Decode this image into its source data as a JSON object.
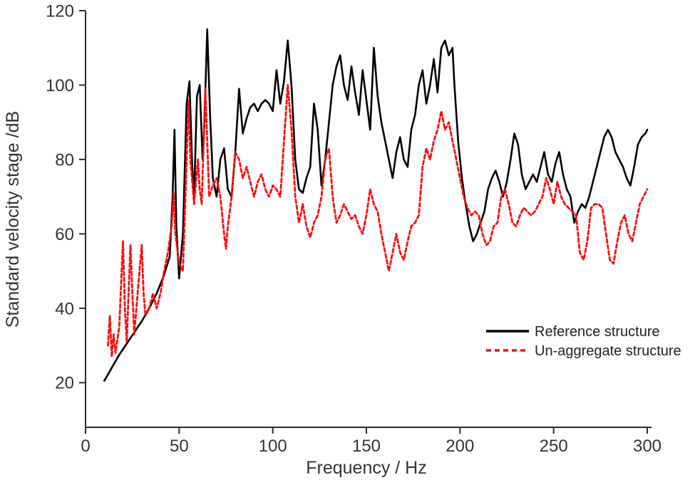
{
  "figure": {
    "background": "#ffffff",
    "text_color": "#333333",
    "axis_color": "#2b2b2b"
  },
  "chart_data": {
    "type": "line",
    "title": "",
    "xlabel": "Frequency / Hz",
    "ylabel": "Standard velocity stage /dB",
    "xlim": [
      0,
      300
    ],
    "ylim": [
      8,
      120
    ],
    "xticks": [
      0,
      50,
      100,
      150,
      200,
      250,
      300
    ],
    "yticks": [
      20,
      40,
      60,
      80,
      100,
      120
    ],
    "grid": false,
    "legend_position": "inside-lower-right",
    "series": [
      {
        "name": "Reference structure",
        "color": "#000000",
        "style": "solid",
        "width": 2.6,
        "x": [
          10,
          14,
          18,
          22,
          26,
          30,
          34,
          38,
          42,
          45,
          46.5,
          47.5,
          48.5,
          50,
          52,
          54,
          55.5,
          57,
          58,
          59.5,
          61,
          62.5,
          63.5,
          65,
          66.5,
          68,
          70,
          72,
          74,
          76,
          78,
          80,
          82,
          84,
          86,
          88,
          90,
          92,
          94,
          96,
          98,
          100,
          102,
          104,
          106,
          108,
          110,
          112,
          114,
          116,
          118,
          120,
          122,
          124,
          126,
          128,
          130,
          132,
          134,
          136,
          138,
          140,
          142,
          144,
          146,
          148,
          150,
          152,
          154,
          156,
          158,
          160,
          162,
          164,
          166,
          168,
          170,
          172,
          174,
          176,
          178,
          180,
          182,
          184,
          186,
          188,
          190,
          192,
          194,
          196,
          197,
          199,
          201,
          203,
          205,
          207,
          209,
          211,
          213,
          215,
          217,
          219,
          221,
          223,
          225,
          227,
          229,
          231,
          233,
          235,
          237,
          239,
          241,
          243,
          245,
          247,
          249,
          251,
          253,
          255,
          257,
          259,
          261,
          263,
          265,
          267,
          269,
          271,
          273,
          275,
          277,
          279,
          281,
          283,
          285,
          287,
          289,
          291,
          293,
          295,
          297,
          299,
          300
        ],
        "y": [
          20.5,
          24,
          27.5,
          30.5,
          33.5,
          36.5,
          40,
          44,
          49,
          54,
          70,
          88,
          62,
          48,
          60,
          95,
          101,
          78,
          70,
          97,
          100,
          80,
          90,
          115,
          92,
          75,
          70,
          80,
          83,
          72,
          70,
          82,
          99,
          87,
          91,
          94,
          95,
          93,
          95,
          96,
          95,
          93,
          104,
          95,
          101,
          112,
          100,
          80,
          72,
          71,
          75,
          78,
          95,
          88,
          73,
          80,
          90,
          100,
          105,
          108,
          100,
          96,
          105,
          98,
          92,
          104,
          96,
          88,
          110,
          97,
          90,
          85,
          80,
          75,
          82,
          86,
          80,
          78,
          88,
          92,
          100,
          104,
          95,
          100,
          107,
          98,
          110,
          112,
          108,
          110,
          100,
          85,
          75,
          68,
          62,
          58,
          60,
          63,
          66,
          72,
          75,
          77,
          74,
          70,
          74,
          80,
          87,
          84,
          76,
          72,
          74,
          76,
          74,
          78,
          82,
          76,
          74,
          79,
          82,
          76,
          72,
          70,
          63,
          66,
          68,
          67,
          70,
          74,
          78,
          82,
          86,
          88,
          86,
          82,
          80,
          78,
          75,
          73,
          78,
          84,
          86,
          87,
          88
        ]
      },
      {
        "name": "Un-aggregate structure",
        "color": "#fb0d0d",
        "style": "dashed",
        "width": 2.8,
        "x": [
          12,
          13,
          14,
          15,
          16,
          18,
          20,
          21,
          22,
          24,
          25,
          26,
          28,
          30,
          31,
          32,
          34,
          36,
          38,
          40,
          42,
          44,
          46,
          47,
          48,
          50,
          52,
          54,
          55,
          56,
          58,
          60,
          61,
          62,
          64,
          65,
          66,
          68,
          70,
          72,
          74,
          75,
          76,
          78,
          80,
          82,
          84,
          86,
          88,
          90,
          92,
          94,
          96,
          98,
          100,
          102,
          104,
          106,
          108,
          110,
          112,
          114,
          116,
          118,
          120,
          122,
          124,
          126,
          128,
          130,
          132,
          134,
          136,
          138,
          140,
          142,
          144,
          146,
          148,
          150,
          152,
          154,
          156,
          158,
          160,
          162,
          164,
          166,
          168,
          170,
          172,
          174,
          176,
          178,
          180,
          182,
          184,
          186,
          188,
          190,
          192,
          194,
          196,
          198,
          200,
          202,
          204,
          206,
          208,
          210,
          212,
          214,
          216,
          218,
          220,
          222,
          224,
          226,
          228,
          230,
          232,
          234,
          236,
          238,
          240,
          242,
          244,
          246,
          248,
          250,
          252,
          254,
          256,
          258,
          260,
          262,
          264,
          266,
          268,
          270,
          272,
          274,
          276,
          278,
          280,
          282,
          284,
          286,
          288,
          290,
          292,
          294,
          296,
          298,
          300
        ],
        "y": [
          30,
          38,
          27,
          33,
          28,
          35,
          58,
          40,
          31,
          57,
          44,
          33,
          45,
          57,
          44,
          38,
          40,
          44,
          40,
          44,
          50,
          55,
          62,
          71,
          60,
          52,
          50,
          80,
          96,
          80,
          68,
          80,
          72,
          68,
          99,
          85,
          70,
          73,
          75,
          70,
          60,
          56,
          62,
          70,
          82,
          80,
          75,
          78,
          74,
          70,
          74,
          76,
          72,
          70,
          73,
          72,
          70,
          85,
          100,
          88,
          70,
          63,
          68,
          62,
          59,
          63,
          65,
          70,
          80,
          83,
          70,
          63,
          65,
          68,
          66,
          64,
          65,
          62,
          60,
          65,
          72,
          68,
          66,
          60,
          55,
          50,
          55,
          60,
          55,
          53,
          58,
          62,
          63,
          65,
          78,
          83,
          80,
          85,
          88,
          93,
          88,
          90,
          85,
          80,
          75,
          70,
          67,
          65,
          66,
          65,
          60,
          57,
          58,
          62,
          63,
          70,
          72,
          68,
          63,
          62,
          65,
          67,
          66,
          65,
          66,
          68,
          70,
          75,
          72,
          68,
          74,
          70,
          68,
          67,
          66,
          65,
          55,
          53,
          58,
          67,
          68,
          68,
          67,
          60,
          53,
          52,
          58,
          63,
          65,
          60,
          58,
          63,
          68,
          70,
          72
        ]
      }
    ]
  }
}
